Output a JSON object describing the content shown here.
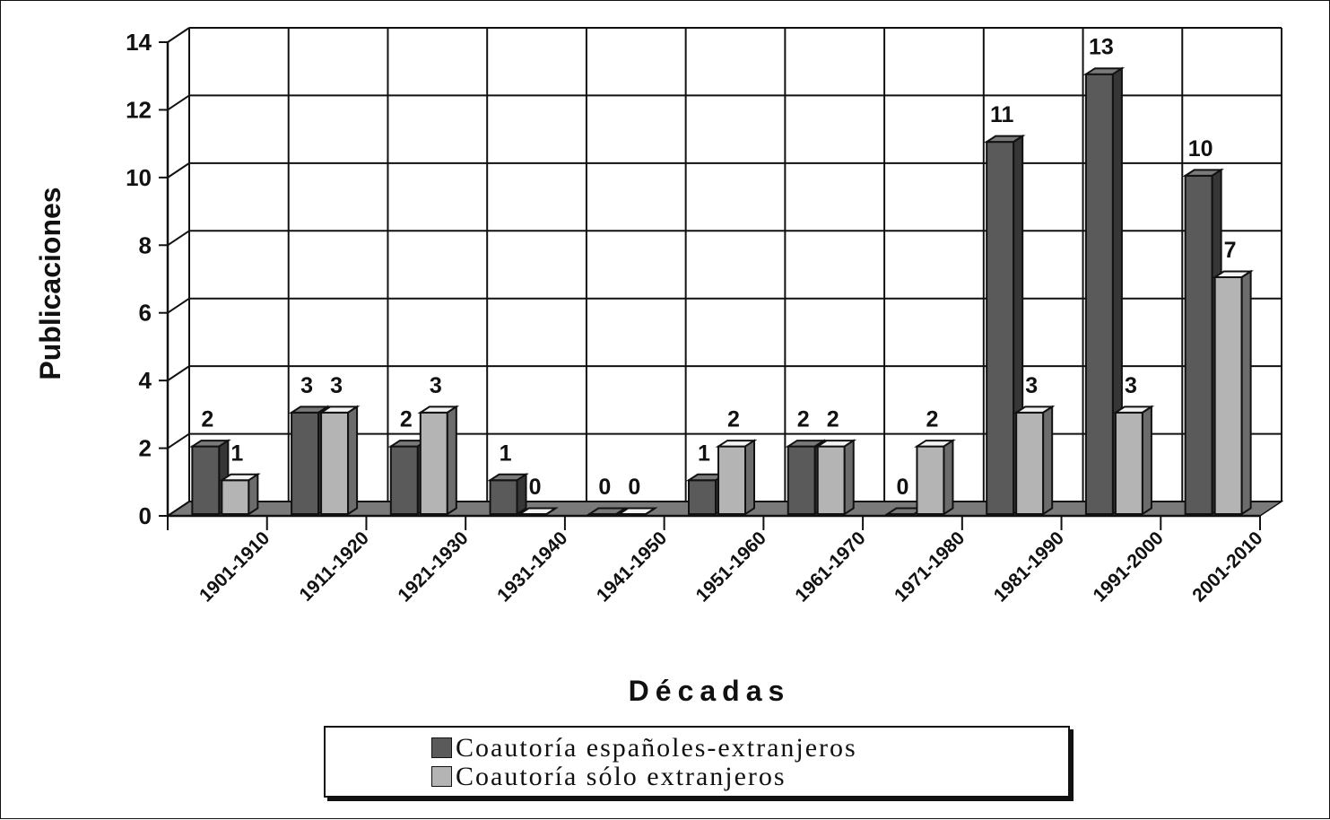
{
  "chart_data": {
    "type": "bar",
    "style": "3d-clustered-column",
    "xlabel": "Décadas",
    "ylabel": "Publicaciones",
    "ylim": [
      0,
      14
    ],
    "yticks": [
      "0",
      "2",
      "4",
      "6",
      "8",
      "10",
      "12",
      "14"
    ],
    "grid": true,
    "legend_position": "bottom",
    "categories": [
      "1901-1910",
      "1911-1920",
      "1921-1930",
      "1931-1940",
      "1941-1950",
      "1951-1960",
      "1961-1970",
      "1971-1980",
      "1981-1990",
      "1991-2000",
      "2001-2010"
    ],
    "series": [
      {
        "name": "Coautoría españoles-extranjeros",
        "color": "#5a5a5a",
        "values": [
          2,
          3,
          2,
          1,
          0,
          1,
          2,
          0,
          11,
          13,
          10
        ]
      },
      {
        "name": "Coautoría sólo extranjeros",
        "color": "#b4b4b4",
        "values": [
          1,
          3,
          3,
          0,
          0,
          2,
          2,
          2,
          3,
          3,
          7
        ]
      }
    ]
  }
}
